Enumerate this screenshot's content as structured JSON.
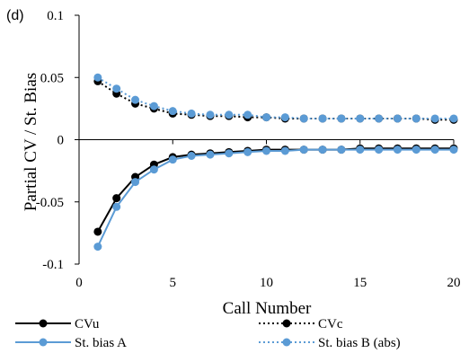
{
  "chart_data": {
    "type": "line",
    "panel_label": "(d)",
    "xlabel": "Call Number",
    "ylabel": "Partial CV / St. Bias",
    "xlim": [
      0,
      20
    ],
    "ylim": [
      -0.1,
      0.1
    ],
    "x_ticks": [
      0,
      5,
      10,
      15,
      20
    ],
    "x_tick_labels": [
      "0",
      "5",
      "10",
      "15",
      "20"
    ],
    "y_ticks": [
      0.1,
      0.05,
      0,
      -0.05,
      -0.1
    ],
    "y_tick_labels": [
      "0.1",
      "0.05",
      "0",
      "-0.05",
      "-0.1"
    ],
    "grid": false,
    "legend_position": "bottom",
    "x": [
      1,
      2,
      3,
      4,
      5,
      6,
      7,
      8,
      9,
      10,
      11,
      12,
      13,
      14,
      15,
      16,
      17,
      18,
      19,
      20
    ],
    "series": [
      {
        "name": "CVu",
        "color": "#000000",
        "line_style": "solid",
        "values": [
          -0.074,
          -0.047,
          -0.03,
          -0.02,
          -0.014,
          -0.012,
          -0.011,
          -0.01,
          -0.009,
          -0.008,
          -0.008,
          -0.008,
          -0.008,
          -0.008,
          -0.007,
          -0.007,
          -0.007,
          -0.007,
          -0.007,
          -0.007
        ]
      },
      {
        "name": "CVc",
        "color": "#000000",
        "line_style": "dotted",
        "values": [
          0.047,
          0.037,
          0.029,
          0.025,
          0.021,
          0.02,
          0.019,
          0.019,
          0.018,
          0.018,
          0.017,
          0.017,
          0.017,
          0.017,
          0.017,
          0.017,
          0.017,
          0.017,
          0.016,
          0.016
        ]
      },
      {
        "name": "St. bias A",
        "color": "#5B9BD5",
        "line_style": "solid",
        "values": [
          -0.086,
          -0.054,
          -0.034,
          -0.024,
          -0.016,
          -0.013,
          -0.012,
          -0.011,
          -0.01,
          -0.009,
          -0.009,
          -0.008,
          -0.008,
          -0.008,
          -0.008,
          -0.008,
          -0.008,
          -0.008,
          -0.008,
          -0.008
        ]
      },
      {
        "name": "St. bias B (abs)",
        "color": "#5B9BD5",
        "line_style": "dotted",
        "values": [
          0.05,
          0.041,
          0.032,
          0.027,
          0.023,
          0.021,
          0.02,
          0.02,
          0.02,
          0.018,
          0.018,
          0.017,
          0.017,
          0.017,
          0.017,
          0.017,
          0.017,
          0.017,
          0.017,
          0.017
        ]
      }
    ]
  }
}
